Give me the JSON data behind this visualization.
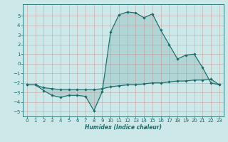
{
  "xlabel": "Humidex (Indice chaleur)",
  "background_color": "#cce8e8",
  "line_color": "#1a6b6b",
  "x": [
    0,
    1,
    2,
    3,
    4,
    5,
    6,
    7,
    8,
    9,
    10,
    11,
    12,
    13,
    14,
    15,
    16,
    17,
    18,
    19,
    20,
    21,
    22,
    23
  ],
  "y_upper": [
    -2.2,
    -2.2,
    -2.8,
    -3.3,
    -3.5,
    -3.3,
    -3.3,
    -3.4,
    -4.9,
    -2.9,
    3.3,
    5.1,
    5.4,
    5.3,
    4.8,
    5.2,
    3.5,
    2.0,
    0.5,
    0.9,
    1.0,
    -0.4,
    -2.0,
    -2.2
  ],
  "y_lower": [
    -2.2,
    -2.2,
    -2.5,
    -2.6,
    -2.7,
    -2.7,
    -2.7,
    -2.7,
    -2.7,
    -2.6,
    -2.4,
    -2.3,
    -2.2,
    -2.2,
    -2.1,
    -2.0,
    -2.0,
    -1.9,
    -1.8,
    -1.8,
    -1.7,
    -1.7,
    -1.6,
    -2.2
  ],
  "ylim": [
    -5.5,
    6.2
  ],
  "xlim": [
    -0.5,
    23.5
  ],
  "yticks": [
    -5,
    -4,
    -3,
    -2,
    -1,
    0,
    1,
    2,
    3,
    4,
    5
  ],
  "xticks": [
    0,
    1,
    2,
    3,
    4,
    5,
    6,
    7,
    8,
    9,
    10,
    11,
    12,
    13,
    14,
    15,
    16,
    17,
    18,
    19,
    20,
    21,
    22,
    23
  ],
  "tick_fontsize": 5,
  "xlabel_fontsize": 5.5
}
